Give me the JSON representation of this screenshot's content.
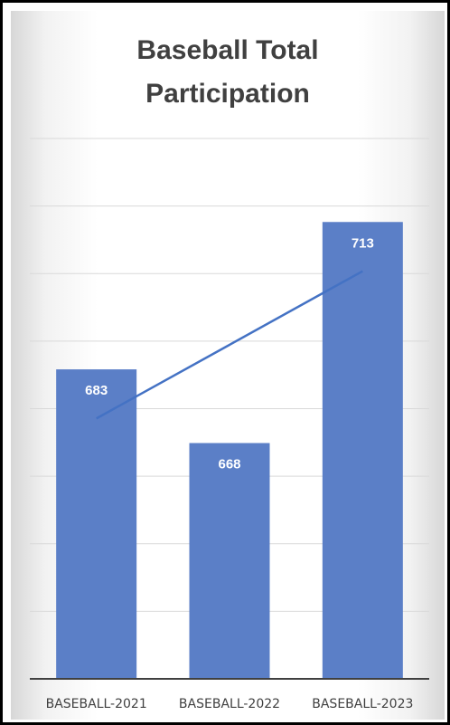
{
  "chart_data": {
    "type": "bar",
    "title_lines": [
      "Baseball Total",
      "Participation"
    ],
    "categories": [
      "BASEBALL-2021",
      "BASEBALL-2022",
      "BASEBALL-2023"
    ],
    "values": [
      683,
      668,
      713
    ],
    "data_labels": [
      "683",
      "668",
      "713"
    ],
    "trendline": "linear",
    "ylim": [
      620,
      730
    ],
    "gridlines": true,
    "y_axis_labels_visible": false,
    "legend": "none",
    "colors": {
      "bar": "#5b7fc7",
      "trendline": "#4472c4",
      "gridline": "#d9d9d9",
      "axis": "#404040"
    }
  }
}
